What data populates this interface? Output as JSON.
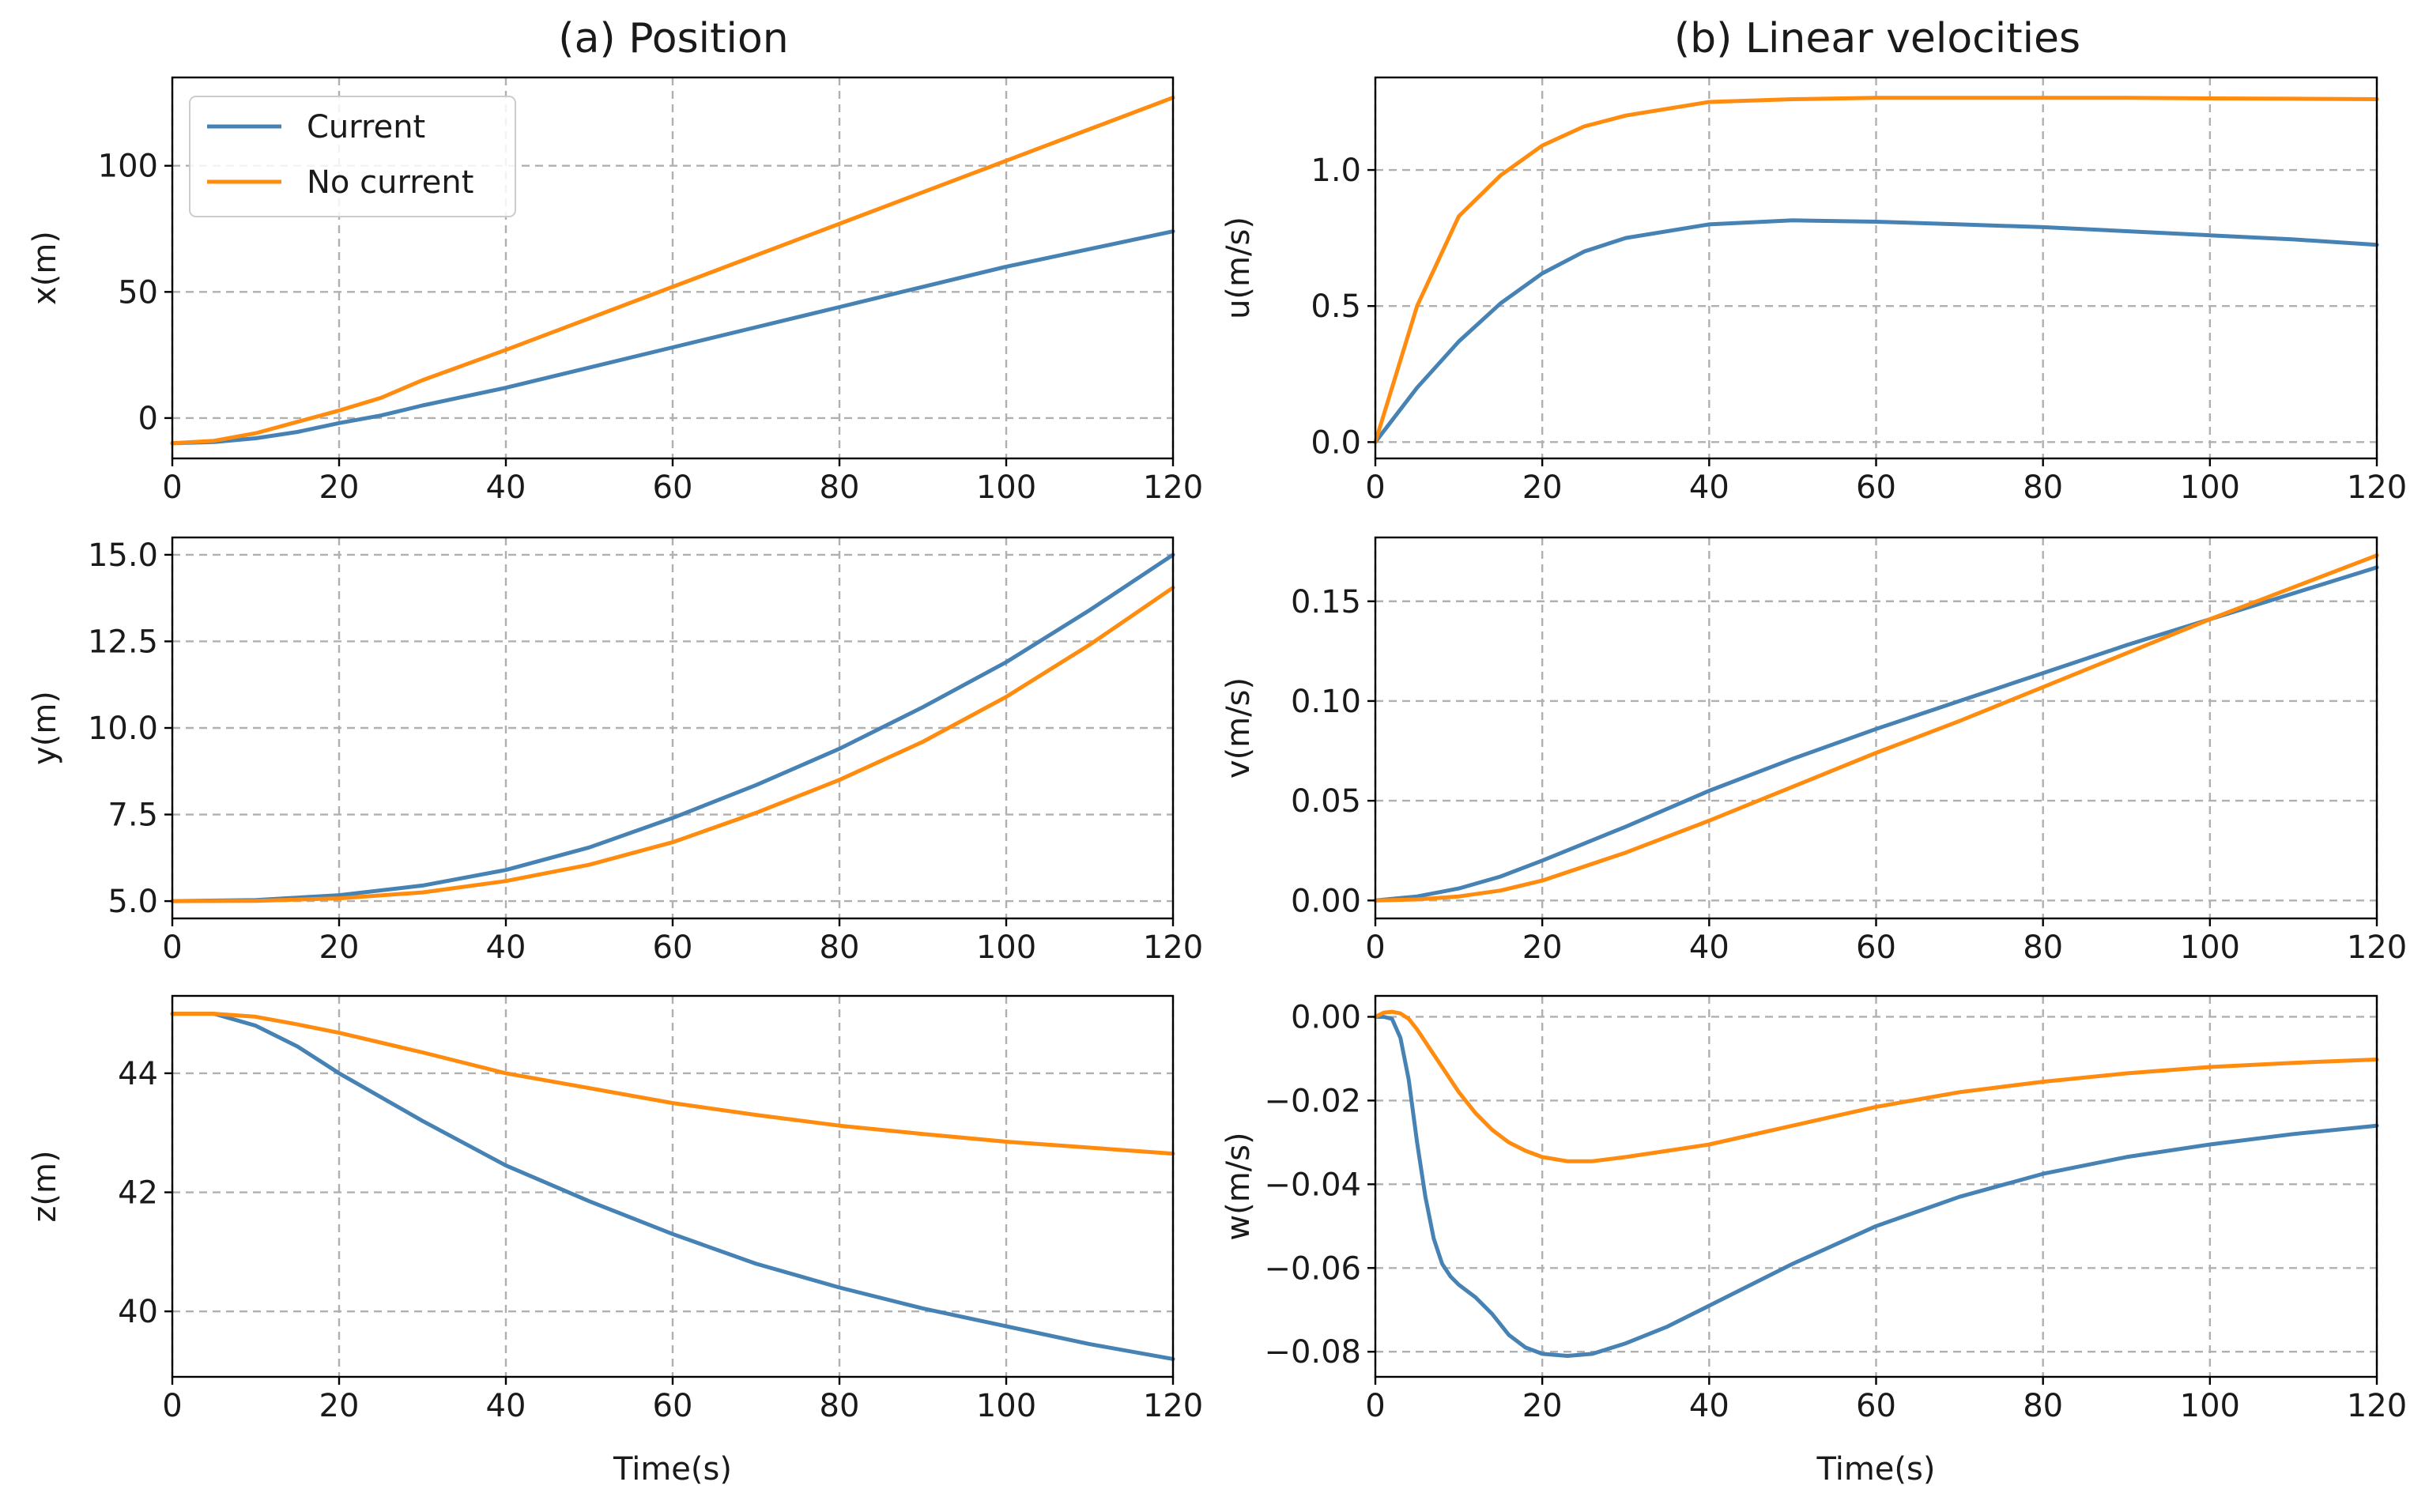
{
  "figure": {
    "legend_location": "upper-left of (a) x panel"
  },
  "titles": {
    "left": "(a) Position",
    "right": "(b) Linear velocities"
  },
  "colors": {
    "Current": "#4682b4",
    "No current": "#ff8c0f"
  },
  "chart_data": [
    {
      "id": "x",
      "col": 0,
      "row": 0,
      "type": "line",
      "title": "(a) Position",
      "xlabel": "",
      "ylabel": "x(m)",
      "xlim": [
        0,
        120
      ],
      "ylim": [
        -16,
        135
      ],
      "xticks": [
        0,
        20,
        40,
        60,
        80,
        100,
        120
      ],
      "yticks": [
        0,
        50,
        100
      ],
      "ytick_labels": [
        "0",
        "50",
        "100"
      ],
      "legend": true,
      "grid": true,
      "x": [
        0,
        5,
        10,
        15,
        20,
        25,
        30,
        40,
        50,
        60,
        70,
        80,
        90,
        100,
        110,
        120
      ],
      "series": [
        {
          "name": "Current",
          "values": [
            -10,
            -9.5,
            -8,
            -5.5,
            -2,
            1,
            5,
            12,
            20,
            28,
            36,
            44,
            52,
            60,
            67,
            74
          ]
        },
        {
          "name": "No current",
          "values": [
            -10,
            -9,
            -6,
            -1.5,
            3,
            8,
            15,
            27,
            39.5,
            52,
            64.5,
            77,
            89.5,
            102,
            114.5,
            127
          ]
        }
      ]
    },
    {
      "id": "y",
      "col": 0,
      "row": 1,
      "type": "line",
      "title": "",
      "xlabel": "",
      "ylabel": "y(m)",
      "xlim": [
        0,
        120
      ],
      "ylim": [
        4.5,
        15.5
      ],
      "xticks": [
        0,
        20,
        40,
        60,
        80,
        100,
        120
      ],
      "yticks": [
        5,
        7.5,
        10,
        12.5,
        15
      ],
      "ytick_labels": [
        "5.0",
        "7.5",
        "10.0",
        "12.5",
        "15.0"
      ],
      "legend": false,
      "grid": true,
      "x": [
        0,
        10,
        20,
        30,
        40,
        50,
        60,
        70,
        80,
        90,
        100,
        110,
        120
      ],
      "series": [
        {
          "name": "Current",
          "values": [
            5,
            5.03,
            5.17,
            5.45,
            5.9,
            6.55,
            7.4,
            8.35,
            9.4,
            10.6,
            11.9,
            13.4,
            15.0
          ]
        },
        {
          "name": "No current",
          "values": [
            5,
            5.01,
            5.08,
            5.25,
            5.58,
            6.05,
            6.7,
            7.55,
            8.5,
            9.6,
            10.9,
            12.4,
            14.05
          ]
        }
      ]
    },
    {
      "id": "z",
      "col": 0,
      "row": 2,
      "type": "line",
      "title": "",
      "xlabel": "Time(s)",
      "ylabel": "z(m)",
      "xlim": [
        0,
        120
      ],
      "ylim": [
        38.9,
        45.3
      ],
      "xticks": [
        0,
        20,
        40,
        60,
        80,
        100,
        120
      ],
      "yticks": [
        40,
        42,
        44
      ],
      "ytick_labels": [
        "40",
        "42",
        "44"
      ],
      "legend": false,
      "grid": true,
      "x": [
        0,
        5,
        10,
        15,
        20,
        30,
        40,
        50,
        60,
        70,
        80,
        90,
        100,
        110,
        120
      ],
      "series": [
        {
          "name": "Current",
          "values": [
            45,
            45,
            44.8,
            44.45,
            44.0,
            43.2,
            42.45,
            41.85,
            41.3,
            40.8,
            40.4,
            40.05,
            39.75,
            39.45,
            39.2
          ]
        },
        {
          "name": "No current",
          "values": [
            45,
            45,
            44.95,
            44.82,
            44.68,
            44.35,
            44.0,
            43.75,
            43.5,
            43.3,
            43.12,
            42.98,
            42.85,
            42.75,
            42.65
          ]
        }
      ]
    },
    {
      "id": "u",
      "col": 1,
      "row": 0,
      "type": "line",
      "title": "(b) Linear velocities",
      "xlabel": "",
      "ylabel": "u(m/s)",
      "xlim": [
        0,
        120
      ],
      "ylim": [
        -0.06,
        1.34
      ],
      "xticks": [
        0,
        20,
        40,
        60,
        80,
        100,
        120
      ],
      "yticks": [
        0,
        0.5,
        1.0
      ],
      "ytick_labels": [
        "0.0",
        "0.5",
        "1.0"
      ],
      "legend": false,
      "grid": true,
      "x": [
        0,
        5,
        10,
        15,
        20,
        25,
        30,
        40,
        50,
        60,
        70,
        80,
        90,
        100,
        110,
        120
      ],
      "series": [
        {
          "name": "Current",
          "values": [
            0,
            0.2,
            0.37,
            0.51,
            0.62,
            0.7,
            0.75,
            0.8,
            0.815,
            0.81,
            0.8,
            0.79,
            0.775,
            0.76,
            0.745,
            0.725
          ]
        },
        {
          "name": "No current",
          "values": [
            0,
            0.5,
            0.83,
            0.98,
            1.09,
            1.16,
            1.2,
            1.25,
            1.26,
            1.265,
            1.265,
            1.265,
            1.265,
            1.263,
            1.262,
            1.26
          ]
        }
      ]
    },
    {
      "id": "v",
      "col": 1,
      "row": 1,
      "type": "line",
      "title": "",
      "xlabel": "",
      "ylabel": "v(m/s)",
      "xlim": [
        0,
        120
      ],
      "ylim": [
        -0.009,
        0.182
      ],
      "xticks": [
        0,
        20,
        40,
        60,
        80,
        100,
        120
      ],
      "yticks": [
        0,
        0.05,
        0.1,
        0.15
      ],
      "ytick_labels": [
        "0.00",
        "0.05",
        "0.10",
        "0.15"
      ],
      "legend": false,
      "grid": true,
      "x": [
        0,
        5,
        10,
        15,
        20,
        30,
        40,
        50,
        60,
        70,
        80,
        90,
        100,
        110,
        120
      ],
      "series": [
        {
          "name": "Current",
          "values": [
            0,
            0.002,
            0.006,
            0.012,
            0.02,
            0.037,
            0.055,
            0.071,
            0.086,
            0.1,
            0.114,
            0.128,
            0.141,
            0.154,
            0.167
          ]
        },
        {
          "name": "No current",
          "values": [
            0,
            0.0005,
            0.002,
            0.005,
            0.01,
            0.024,
            0.04,
            0.057,
            0.074,
            0.09,
            0.107,
            0.124,
            0.141,
            0.157,
            0.173
          ]
        }
      ]
    },
    {
      "id": "w",
      "col": 1,
      "row": 2,
      "type": "line",
      "title": "",
      "xlabel": "Time(s)",
      "ylabel": "w(m/s)",
      "xlim": [
        0,
        120
      ],
      "ylim": [
        -0.086,
        0.005
      ],
      "xticks": [
        0,
        20,
        40,
        60,
        80,
        100,
        120
      ],
      "yticks": [
        -0.08,
        -0.06,
        -0.04,
        -0.02,
        0
      ],
      "ytick_labels": [
        "−0.08",
        "−0.06",
        "−0.04",
        "−0.02",
        "0.00"
      ],
      "legend": false,
      "grid": true,
      "x": [
        0,
        1,
        2,
        3,
        4,
        5,
        6,
        7,
        8,
        9,
        10,
        12,
        14,
        16,
        18,
        20,
        23,
        26,
        30,
        35,
        40,
        50,
        60,
        70,
        80,
        90,
        100,
        110,
        120
      ],
      "series": [
        {
          "name": "Current",
          "values": [
            0,
            0,
            -0.0005,
            -0.005,
            -0.015,
            -0.03,
            -0.043,
            -0.053,
            -0.059,
            -0.062,
            -0.064,
            -0.067,
            -0.071,
            -0.076,
            -0.079,
            -0.0805,
            -0.081,
            -0.0805,
            -0.078,
            -0.074,
            -0.069,
            -0.059,
            -0.05,
            -0.043,
            -0.0375,
            -0.0335,
            -0.0305,
            -0.028,
            -0.026
          ]
        },
        {
          "name": "No current",
          "values": [
            0,
            0.001,
            0.0012,
            0.0008,
            -0.0005,
            -0.003,
            -0.006,
            -0.009,
            -0.012,
            -0.015,
            -0.018,
            -0.023,
            -0.027,
            -0.03,
            -0.032,
            -0.0335,
            -0.0345,
            -0.0345,
            -0.0335,
            -0.032,
            -0.0305,
            -0.026,
            -0.0215,
            -0.018,
            -0.0155,
            -0.0135,
            -0.012,
            -0.011,
            -0.0102
          ]
        }
      ]
    }
  ]
}
